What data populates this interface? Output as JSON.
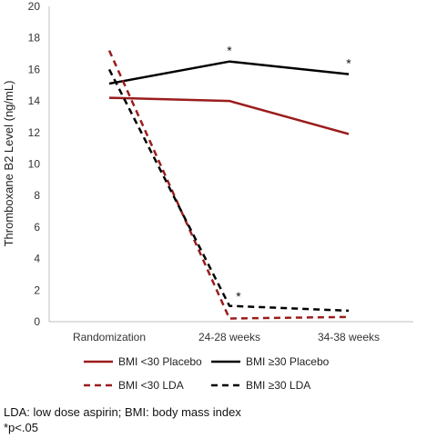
{
  "chart_data": {
    "type": "line",
    "categories": [
      "Randomization",
      "24-28 weeks",
      "34-38 weeks"
    ],
    "xlabel": "",
    "ylabel": "Thromboxane B2 Level (ng/mL)",
    "ylim": [
      0,
      20
    ],
    "yticks": [
      0,
      2,
      4,
      6,
      8,
      10,
      12,
      14,
      16,
      18,
      20
    ],
    "grid": false,
    "legend_position": "bottom",
    "series": [
      {
        "name": "BMI <30 Placebo",
        "values": [
          14.2,
          14.0,
          11.9
        ],
        "color": "#9b1c1c",
        "dash": "solid"
      },
      {
        "name": "BMI ≥30 Placebo",
        "values": [
          15.1,
          16.5,
          15.7
        ],
        "color": "#000000",
        "dash": "solid"
      },
      {
        "name": "BMI <30 LDA",
        "values": [
          17.2,
          0.2,
          0.3
        ],
        "color": "#9b1c1c",
        "dash": "dashed"
      },
      {
        "name": "BMI ≥30 LDA",
        "values": [
          16.0,
          1.0,
          0.7
        ],
        "color": "#000000",
        "dash": "dashed"
      }
    ],
    "annotations": [
      {
        "text": "*",
        "category": "24-28 weeks",
        "y": 17.2
      },
      {
        "text": "*",
        "category": "34-38 weeks",
        "y": 16.4
      },
      {
        "text": "*",
        "category": "24-28 weeks",
        "y": 1.6,
        "offset": "right"
      }
    ]
  },
  "footnotes": {
    "abbrev": "LDA: low dose aspirin; BMI: body mass index",
    "pvalue": "*p<.05"
  }
}
